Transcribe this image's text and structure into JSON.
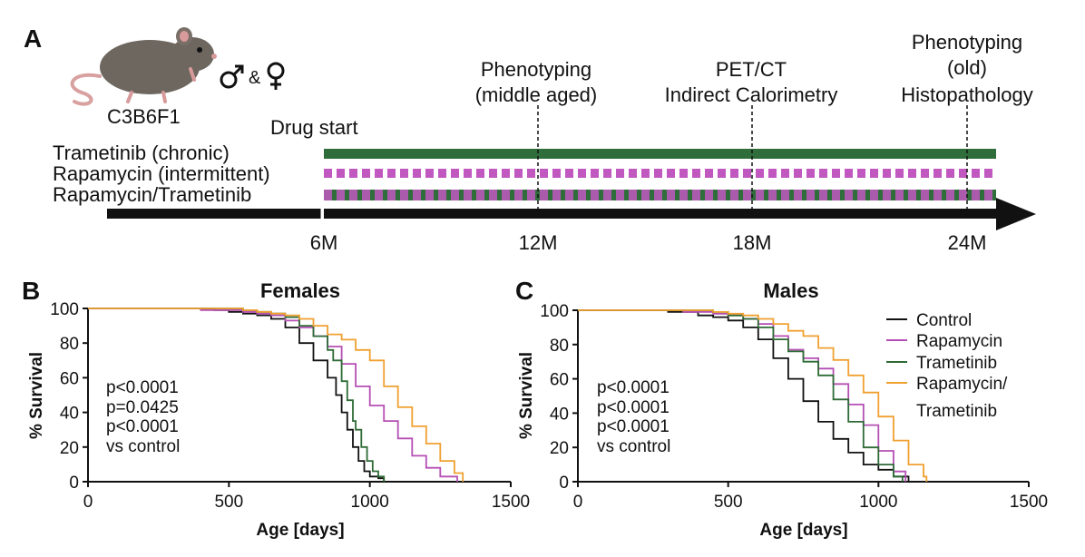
{
  "colors": {
    "control": "#111111",
    "rapamycin": "#b54fb4",
    "trametinib": "#2e6b36",
    "combo": "#f0a030",
    "trametinib_bar": "#2f6e3a",
    "rapamycin_bar": "#c058c0"
  },
  "icons": {
    "mouse": "mouse-icon",
    "male": "male-symbol-icon",
    "female": "female-symbol-icon"
  },
  "panelA": {
    "letter": "A",
    "strain": "C3B6F1",
    "sex_amp": "&",
    "drug_start": "Drug start",
    "rows": [
      {
        "label": "Trametinib (chronic)",
        "style": "solid"
      },
      {
        "label": "Rapamycin (intermittent)",
        "style": "dashed"
      },
      {
        "label": "Rapamycin/Trametinib",
        "style": "combined"
      }
    ],
    "ticks": [
      "6M",
      "12M",
      "18M",
      "24M"
    ],
    "events": [
      {
        "month": 12,
        "lines": [
          "Phenotyping",
          "(middle aged)"
        ]
      },
      {
        "month": 18,
        "lines": [
          "PET/CT",
          "Indirect Calorimetry"
        ]
      },
      {
        "month": 24,
        "lines": [
          "Phenotyping",
          "(old)",
          "Histopathology"
        ]
      }
    ]
  },
  "panelB": {
    "letter": "B",
    "title": "Females",
    "pvals": [
      {
        "text": "p<0.0001",
        "color": "#b54fb4"
      },
      {
        "text": "p=0.0425",
        "color": "#2e6b36"
      },
      {
        "text": "p<0.0001",
        "color": "#f0a030"
      },
      {
        "text": "vs control",
        "color": "#111111"
      }
    ]
  },
  "panelC": {
    "letter": "C",
    "title": "Males",
    "pvals": [
      {
        "text": "p<0.0001",
        "color": "#b54fb4"
      },
      {
        "text": "p<0.0001",
        "color": "#2e6b36"
      },
      {
        "text": "p<0.0001",
        "color": "#f0a030"
      },
      {
        "text": "vs control",
        "color": "#111111"
      }
    ],
    "legend": [
      {
        "key": "control",
        "lines": [
          "Control"
        ]
      },
      {
        "key": "rapamycin",
        "lines": [
          "Rapamycin"
        ]
      },
      {
        "key": "trametinib",
        "lines": [
          "Trametinib"
        ]
      },
      {
        "key": "combo",
        "lines": [
          "Rapamycin/",
          "Trametinib"
        ]
      }
    ]
  },
  "chart_data": [
    {
      "type": "line",
      "title": "Females",
      "xlabel": "Age [days]",
      "ylabel": "% Survival",
      "xlim": [
        0,
        1500
      ],
      "ylim": [
        0,
        100
      ],
      "xticks": [
        0,
        500,
        1000,
        1500
      ],
      "yticks": [
        0,
        20,
        40,
        60,
        80,
        100
      ],
      "series": [
        {
          "key": "control",
          "points": [
            [
              0,
              100
            ],
            [
              400,
              100
            ],
            [
              450,
              99
            ],
            [
              500,
              98
            ],
            [
              550,
              97
            ],
            [
              600,
              96
            ],
            [
              650,
              94
            ],
            [
              700,
              89
            ],
            [
              750,
              80
            ],
            [
              800,
              70
            ],
            [
              850,
              60
            ],
            [
              880,
              50
            ],
            [
              900,
              40
            ],
            [
              920,
              30
            ],
            [
              940,
              20
            ],
            [
              960,
              12
            ],
            [
              980,
              6
            ],
            [
              1000,
              3
            ],
            [
              1030,
              2
            ],
            [
              1050,
              0
            ]
          ]
        },
        {
          "key": "rapamycin",
          "points": [
            [
              0,
              100
            ],
            [
              330,
              100
            ],
            [
              400,
              99
            ],
            [
              500,
              99
            ],
            [
              550,
              98
            ],
            [
              600,
              97
            ],
            [
              650,
              96
            ],
            [
              700,
              93
            ],
            [
              750,
              89
            ],
            [
              800,
              84
            ],
            [
              850,
              78
            ],
            [
              900,
              68
            ],
            [
              950,
              55
            ],
            [
              1000,
              44
            ],
            [
              1050,
              35
            ],
            [
              1100,
              25
            ],
            [
              1150,
              15
            ],
            [
              1200,
              8
            ],
            [
              1250,
              3
            ],
            [
              1310,
              0
            ]
          ]
        },
        {
          "key": "trametinib",
          "points": [
            [
              0,
              100
            ],
            [
              500,
              100
            ],
            [
              550,
              99
            ],
            [
              600,
              98
            ],
            [
              650,
              97
            ],
            [
              700,
              95
            ],
            [
              750,
              90
            ],
            [
              800,
              84
            ],
            [
              850,
              76
            ],
            [
              870,
              70
            ],
            [
              900,
              58
            ],
            [
              920,
              47
            ],
            [
              940,
              35
            ],
            [
              950,
              30
            ],
            [
              970,
              20
            ],
            [
              990,
              12
            ],
            [
              1010,
              6
            ],
            [
              1030,
              3
            ],
            [
              1050,
              0
            ]
          ]
        },
        {
          "key": "combo",
          "points": [
            [
              0,
              100
            ],
            [
              500,
              100
            ],
            [
              550,
              99
            ],
            [
              600,
              98
            ],
            [
              650,
              97
            ],
            [
              700,
              96
            ],
            [
              750,
              94
            ],
            [
              800,
              90
            ],
            [
              850,
              85
            ],
            [
              900,
              82
            ],
            [
              950,
              76
            ],
            [
              1000,
              70
            ],
            [
              1050,
              55
            ],
            [
              1100,
              43
            ],
            [
              1150,
              32
            ],
            [
              1200,
              22
            ],
            [
              1250,
              12
            ],
            [
              1300,
              5
            ],
            [
              1330,
              0
            ]
          ]
        }
      ]
    },
    {
      "type": "line",
      "title": "Males",
      "xlabel": "Age [days]",
      "ylabel": "% Survival",
      "xlim": [
        0,
        1500
      ],
      "ylim": [
        0,
        100
      ],
      "xticks": [
        0,
        500,
        1000,
        1500
      ],
      "yticks": [
        0,
        20,
        40,
        60,
        80,
        100
      ],
      "series": [
        {
          "key": "control",
          "points": [
            [
              0,
              100
            ],
            [
              200,
              100
            ],
            [
              300,
              99
            ],
            [
              400,
              97
            ],
            [
              450,
              96
            ],
            [
              500,
              94
            ],
            [
              550,
              90
            ],
            [
              600,
              83
            ],
            [
              650,
              72
            ],
            [
              700,
              60
            ],
            [
              750,
              47
            ],
            [
              800,
              35
            ],
            [
              850,
              25
            ],
            [
              900,
              17
            ],
            [
              950,
              10
            ],
            [
              1000,
              7
            ],
            [
              1050,
              3
            ],
            [
              1100,
              0
            ]
          ]
        },
        {
          "key": "rapamycin",
          "points": [
            [
              0,
              100
            ],
            [
              250,
              100
            ],
            [
              350,
              99
            ],
            [
              450,
              98
            ],
            [
              500,
              97
            ],
            [
              550,
              95
            ],
            [
              600,
              92
            ],
            [
              650,
              85
            ],
            [
              700,
              77
            ],
            [
              750,
              72
            ],
            [
              800,
              66
            ],
            [
              850,
              57
            ],
            [
              900,
              45
            ],
            [
              950,
              33
            ],
            [
              1000,
              18
            ],
            [
              1050,
              6
            ],
            [
              1090,
              0
            ]
          ]
        },
        {
          "key": "trametinib",
          "points": [
            [
              0,
              100
            ],
            [
              350,
              100
            ],
            [
              450,
              99
            ],
            [
              500,
              97
            ],
            [
              550,
              95
            ],
            [
              600,
              90
            ],
            [
              650,
              83
            ],
            [
              700,
              76
            ],
            [
              750,
              70
            ],
            [
              800,
              62
            ],
            [
              850,
              48
            ],
            [
              900,
              35
            ],
            [
              950,
              20
            ],
            [
              1000,
              10
            ],
            [
              1050,
              3
            ],
            [
              1080,
              0
            ]
          ]
        },
        {
          "key": "combo",
          "points": [
            [
              0,
              100
            ],
            [
              400,
              100
            ],
            [
              450,
              99
            ],
            [
              500,
              98
            ],
            [
              550,
              97
            ],
            [
              600,
              95
            ],
            [
              650,
              92
            ],
            [
              700,
              88
            ],
            [
              750,
              85
            ],
            [
              800,
              78
            ],
            [
              850,
              71
            ],
            [
              900,
              62
            ],
            [
              950,
              52
            ],
            [
              1000,
              38
            ],
            [
              1050,
              24
            ],
            [
              1100,
              10
            ],
            [
              1150,
              3
            ],
            [
              1160,
              0
            ]
          ]
        }
      ]
    }
  ]
}
